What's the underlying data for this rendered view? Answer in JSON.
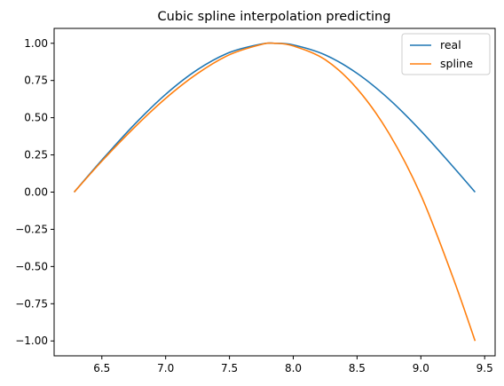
{
  "chart_data": {
    "type": "line",
    "title": "Cubic spline interpolation predicting",
    "xlabel": "",
    "ylabel": "",
    "xlim": [
      6.126,
      9.582
    ],
    "ylim": [
      -1.1,
      1.1
    ],
    "x_ticks": [
      6.5,
      7.0,
      7.5,
      8.0,
      8.5,
      9.0,
      9.5
    ],
    "x_tick_labels": [
      "6.5",
      "7.0",
      "7.5",
      "8.0",
      "8.5",
      "9.0",
      "9.5"
    ],
    "y_ticks": [
      -1.0,
      -0.75,
      -0.5,
      -0.25,
      0.0,
      0.25,
      0.5,
      0.75,
      1.0
    ],
    "y_tick_labels": [
      "−1.00",
      "−0.75",
      "−0.50",
      "−0.25",
      "0.00",
      "0.25",
      "0.50",
      "0.75",
      "1.00"
    ],
    "grid": false,
    "legend_position": "top-right",
    "series": [
      {
        "name": "real",
        "color": "#1f77b4",
        "x": [
          6.283,
          6.5,
          6.75,
          7.0,
          7.25,
          7.5,
          7.75,
          7.854,
          8.0,
          8.25,
          8.5,
          8.75,
          9.0,
          9.25,
          9.425
        ],
        "y": [
          0.0,
          0.215,
          0.45,
          0.657,
          0.823,
          0.938,
          0.995,
          1.0,
          0.989,
          0.922,
          0.798,
          0.625,
          0.412,
          0.173,
          0.0
        ]
      },
      {
        "name": "spline",
        "color": "#ff7f0e",
        "x": [
          6.283,
          6.5,
          6.75,
          7.0,
          7.25,
          7.5,
          7.75,
          7.854,
          8.0,
          8.25,
          8.5,
          8.75,
          9.0,
          9.25,
          9.425
        ],
        "y": [
          0.0,
          0.208,
          0.43,
          0.63,
          0.797,
          0.923,
          0.992,
          1.0,
          0.982,
          0.89,
          0.695,
          0.395,
          -0.02,
          -0.57,
          -1.0
        ]
      }
    ]
  }
}
